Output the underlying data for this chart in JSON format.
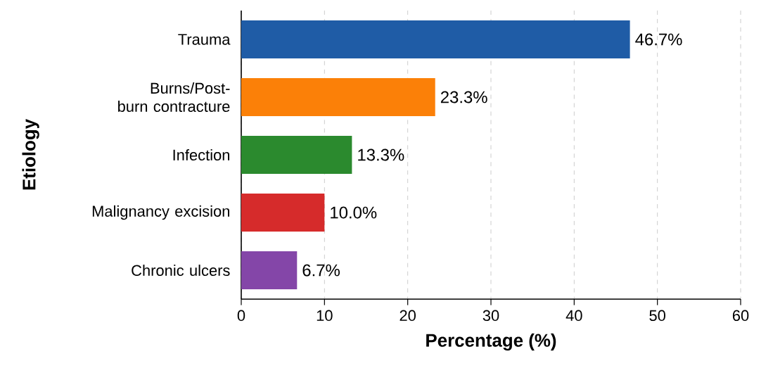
{
  "chart_data": {
    "type": "bar",
    "orientation": "horizontal",
    "xlabel": "Percentage (%)",
    "ylabel": "Etiology",
    "categories": [
      "Trauma",
      "Burns/Post-burn contracture",
      "Infection",
      "Malignancy excision",
      "Chronic ulcers"
    ],
    "values": [
      46.7,
      23.3,
      13.3,
      10.0,
      6.7
    ],
    "value_labels": [
      "46.7%",
      "23.3%",
      "13.3%",
      "10.0%",
      "6.7%"
    ],
    "colors": [
      "#1f5ca6",
      "#fb8008",
      "#2b8a2e",
      "#d62b2b",
      "#8446a8"
    ],
    "xlim": [
      0,
      60
    ],
    "xticks": [
      0,
      10,
      20,
      30,
      40,
      50,
      60
    ],
    "grid": "x"
  }
}
